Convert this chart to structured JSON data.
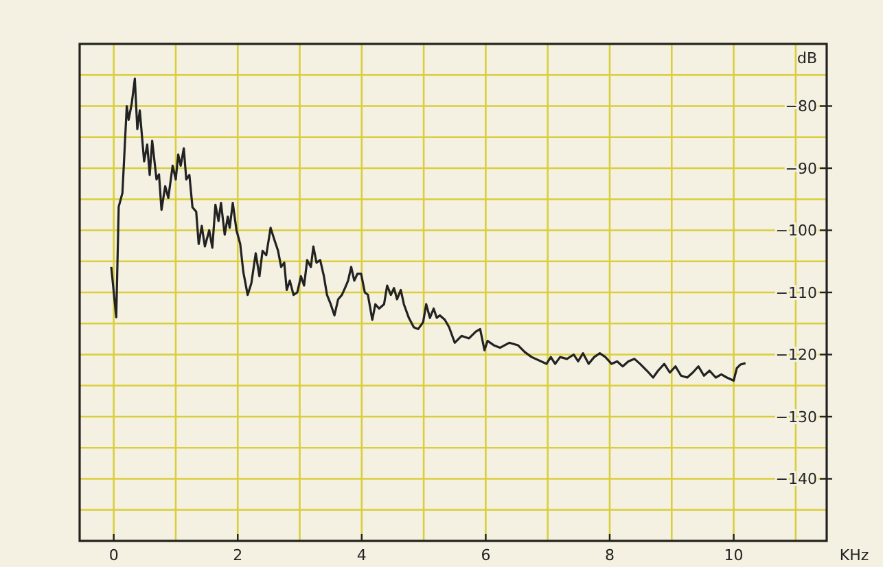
{
  "chart_data": {
    "type": "line",
    "xlabel": "KHz",
    "ylabel": "dB",
    "xlim": [
      -0.55,
      11.5
    ],
    "ylim": [
      -150,
      -70
    ],
    "xticks": [
      0,
      2,
      4,
      6,
      8,
      10
    ],
    "yticks": [
      -80,
      -90,
      -100,
      -110,
      -120,
      -130,
      -140
    ],
    "grid": true,
    "marker": "none",
    "line_style": "solid",
    "series": [
      {
        "color": "#222222",
        "x": [
          -0.04,
          0.04,
          0.08,
          0.14,
          0.21,
          0.24,
          0.29,
          0.34,
          0.38,
          0.42,
          0.49,
          0.54,
          0.58,
          0.62,
          0.69,
          0.73,
          0.77,
          0.83,
          0.88,
          0.95,
          1.0,
          1.04,
          1.08,
          1.13,
          1.17,
          1.22,
          1.27,
          1.33,
          1.37,
          1.42,
          1.47,
          1.54,
          1.59,
          1.64,
          1.69,
          1.73,
          1.79,
          1.84,
          1.87,
          1.92,
          1.98,
          2.04,
          2.09,
          2.16,
          2.22,
          2.29,
          2.35,
          2.4,
          2.46,
          2.53,
          2.59,
          2.65,
          2.7,
          2.75,
          2.79,
          2.84,
          2.9,
          2.96,
          3.02,
          3.07,
          3.12,
          3.18,
          3.22,
          3.27,
          3.33,
          3.39,
          3.44,
          3.5,
          3.56,
          3.62,
          3.68,
          3.73,
          3.78,
          3.83,
          3.88,
          3.93,
          3.99,
          4.05,
          4.1,
          4.17,
          4.22,
          4.28,
          4.36,
          4.41,
          4.47,
          4.52,
          4.57,
          4.63,
          4.68,
          4.76,
          4.84,
          4.91,
          4.99,
          5.04,
          5.1,
          5.16,
          5.21,
          5.26,
          5.34,
          5.41,
          5.5,
          5.61,
          5.73,
          5.84,
          5.91,
          5.98,
          6.03,
          6.13,
          6.23,
          6.38,
          6.52,
          6.63,
          6.74,
          6.98,
          7.05,
          7.12,
          7.2,
          7.31,
          7.42,
          7.49,
          7.57,
          7.66,
          7.75,
          7.84,
          7.93,
          8.03,
          8.12,
          8.21,
          8.3,
          8.4,
          8.49,
          8.6,
          8.7,
          8.78,
          8.88,
          8.97,
          9.06,
          9.15,
          9.25,
          9.34,
          9.43,
          9.52,
          9.61,
          9.71,
          9.8,
          9.89,
          10.0,
          10.05,
          10.11,
          10.19
        ],
        "values": [
          -105.9,
          -114,
          -96.2,
          -94,
          -80,
          -82.2,
          -79.6,
          -75.6,
          -83.7,
          -80.7,
          -88.9,
          -86.2,
          -91.1,
          -85.6,
          -91.8,
          -91,
          -96.7,
          -92.9,
          -94.8,
          -89.6,
          -91.8,
          -87.8,
          -89.6,
          -86.8,
          -91.8,
          -91.1,
          -96.3,
          -97,
          -102.2,
          -99.3,
          -102.6,
          -100,
          -102.8,
          -95.9,
          -98.5,
          -95.6,
          -100.7,
          -97.8,
          -99.6,
          -95.6,
          -100,
          -102.2,
          -106.7,
          -110.4,
          -108.5,
          -103.7,
          -107.4,
          -103.3,
          -104,
          -99.6,
          -101.5,
          -103.3,
          -105.9,
          -105.2,
          -109.6,
          -108.1,
          -110.4,
          -110,
          -107.4,
          -108.9,
          -104.8,
          -105.9,
          -102.6,
          -105.2,
          -104.8,
          -107.4,
          -110.4,
          -111.9,
          -113.7,
          -111.1,
          -110.4,
          -109.3,
          -108.1,
          -105.9,
          -108.1,
          -107,
          -107,
          -110,
          -110.4,
          -114.4,
          -111.9,
          -112.6,
          -111.9,
          -108.9,
          -110.4,
          -109.3,
          -111.1,
          -109.6,
          -111.9,
          -114.1,
          -115.6,
          -115.9,
          -114.8,
          -111.9,
          -114.1,
          -112.6,
          -114.1,
          -113.7,
          -114.4,
          -115.6,
          -118.1,
          -117,
          -117.4,
          -116.3,
          -115.9,
          -119.3,
          -117.8,
          -118.5,
          -118.9,
          -118.1,
          -118.5,
          -119.6,
          -120.4,
          -121.5,
          -120.4,
          -121.5,
          -120.4,
          -120.7,
          -120,
          -121.1,
          -119.8,
          -121.5,
          -120.4,
          -119.8,
          -120.4,
          -121.5,
          -121.1,
          -121.9,
          -121.1,
          -120.7,
          -121.5,
          -122.6,
          -123.7,
          -122.6,
          -121.5,
          -122.9,
          -121.9,
          -123.4,
          -123.7,
          -122.9,
          -121.9,
          -123.4,
          -122.6,
          -123.7,
          -123.2,
          -123.7,
          -124.2,
          -122.2,
          -121.6,
          -121.4
        ]
      }
    ]
  }
}
